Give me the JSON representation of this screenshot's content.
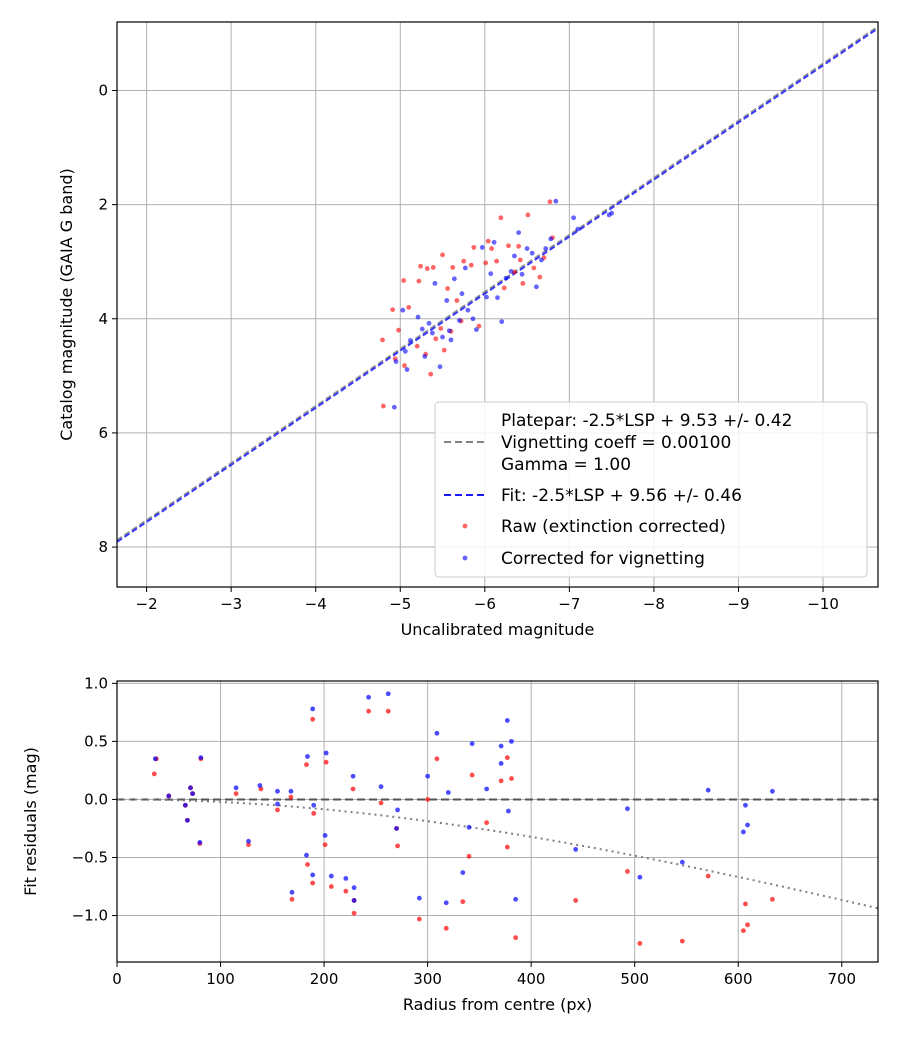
{
  "chart_data": [
    {
      "type": "scatter",
      "title": "",
      "xlabel": "Uncalibrated magnitude",
      "ylabel": "Catalog magnitude (GAIA G band)",
      "xlim": [
        -1.65,
        -10.65
      ],
      "ylim": [
        8.7,
        -1.2
      ],
      "x_inverted": true,
      "y_inverted": true,
      "xticks": [
        -2,
        -3,
        -4,
        -5,
        -6,
        -7,
        -8,
        -9,
        -10
      ],
      "xtick_labels": [
        "−2",
        "−3",
        "−4",
        "−5",
        "−6",
        "−7",
        "−8",
        "−9",
        "−10"
      ],
      "yticks": [
        0,
        2,
        4,
        6,
        8
      ],
      "ytick_labels": [
        "0",
        "2",
        "4",
        "6",
        "8"
      ],
      "grid": true,
      "legend_position": "lower-right",
      "legend": [
        {
          "label": "Platepar: -2.5*LSP + 9.53 +/- 0.42",
          "kind": "none",
          "color": ""
        },
        {
          "label": "Vignetting coeff = 0.00100",
          "kind": "line-dashed",
          "color": "#808080"
        },
        {
          "label": "Gamma = 1.00",
          "kind": "none",
          "color": ""
        },
        {
          "label": "Fit: -2.5*LSP + 9.56 +/- 0.46",
          "kind": "line-dashed",
          "color": "#1a1aff"
        },
        {
          "label": "Raw (extinction corrected)",
          "kind": "marker",
          "color": "#ff0000"
        },
        {
          "label": "Corrected for vignetting",
          "kind": "marker",
          "color": "#0000ff"
        }
      ],
      "lines": [
        {
          "name": "Platepar: -2.5*LSP + 9.53 +/- 0.42",
          "slope": 1.0,
          "intercept": 9.53,
          "color": "#808080",
          "dash": "6,3"
        },
        {
          "name": "Fit: -2.5*LSP + 9.56 +/- 0.46",
          "slope": 1.0,
          "intercept": 9.56,
          "color": "#1a1aff",
          "dash": "6,3"
        }
      ],
      "series": [
        {
          "name": "Raw (extinction corrected)",
          "color": "#ff0000",
          "points": [
            [
              -4.8,
              5.53
            ],
            [
              -4.79,
              4.37
            ],
            [
              -4.91,
              3.84
            ],
            [
              -4.94,
              4.7
            ],
            [
              -4.98,
              4.2
            ],
            [
              -5.04,
              3.33
            ],
            [
              -5.05,
              4.82
            ],
            [
              -5.1,
              3.8
            ],
            [
              -5.2,
              4.48
            ],
            [
              -5.22,
              3.34
            ],
            [
              -5.24,
              3.08
            ],
            [
              -5.3,
              4.62
            ],
            [
              -5.32,
              3.12
            ],
            [
              -5.36,
              4.97
            ],
            [
              -5.39,
              3.1
            ],
            [
              -5.42,
              4.35
            ],
            [
              -5.48,
              4.17
            ],
            [
              -5.5,
              2.88
            ],
            [
              -5.52,
              4.55
            ],
            [
              -5.56,
              3.47
            ],
            [
              -5.6,
              4.22
            ],
            [
              -5.62,
              3.1
            ],
            [
              -5.67,
              3.68
            ],
            [
              -5.72,
              4.04
            ],
            [
              -5.75,
              2.99
            ],
            [
              -5.84,
              3.06
            ],
            [
              -5.87,
              2.75
            ],
            [
              -5.93,
              4.13
            ],
            [
              -6.01,
              3.02
            ],
            [
              -6.04,
              2.64
            ],
            [
              -6.08,
              2.77
            ],
            [
              -6.14,
              2.99
            ],
            [
              -6.19,
              2.23
            ],
            [
              -6.23,
              3.46
            ],
            [
              -6.28,
              2.72
            ],
            [
              -6.35,
              3.18
            ],
            [
              -6.4,
              2.73
            ],
            [
              -6.42,
              2.97
            ],
            [
              -6.45,
              3.38
            ],
            [
              -6.51,
              2.18
            ],
            [
              -6.58,
              3.11
            ],
            [
              -6.65,
              3.27
            ],
            [
              -6.7,
              2.93
            ],
            [
              -6.77,
              1.95
            ],
            [
              -6.8,
              2.58
            ]
          ]
        },
        {
          "name": "Corrected for vignetting",
          "color": "#0000ff",
          "points": [
            [
              -4.93,
              5.55
            ],
            [
              -4.95,
              4.75
            ],
            [
              -5.03,
              3.85
            ],
            [
              -5.06,
              4.57
            ],
            [
              -5.08,
              4.89
            ],
            [
              -5.12,
              4.38
            ],
            [
              -5.21,
              3.97
            ],
            [
              -5.26,
              4.18
            ],
            [
              -5.29,
              4.66
            ],
            [
              -5.34,
              4.08
            ],
            [
              -5.38,
              4.25
            ],
            [
              -5.41,
              3.38
            ],
            [
              -5.47,
              4.84
            ],
            [
              -5.5,
              4.32
            ],
            [
              -5.55,
              3.68
            ],
            [
              -5.58,
              4.21
            ],
            [
              -5.6,
              4.37
            ],
            [
              -5.64,
              3.3
            ],
            [
              -5.7,
              4.03
            ],
            [
              -5.73,
              3.56
            ],
            [
              -5.77,
              3.11
            ],
            [
              -5.8,
              3.85
            ],
            [
              -5.86,
              4.0
            ],
            [
              -5.9,
              4.19
            ],
            [
              -5.97,
              2.75
            ],
            [
              -6.02,
              3.62
            ],
            [
              -6.07,
              3.21
            ],
            [
              -6.11,
              2.66
            ],
            [
              -6.15,
              3.63
            ],
            [
              -6.2,
              4.05
            ],
            [
              -6.25,
              3.29
            ],
            [
              -6.31,
              3.17
            ],
            [
              -6.35,
              2.9
            ],
            [
              -6.4,
              2.49
            ],
            [
              -6.44,
              3.22
            ],
            [
              -6.5,
              2.77
            ],
            [
              -6.56,
              2.85
            ],
            [
              -6.61,
              3.44
            ],
            [
              -6.67,
              2.97
            ],
            [
              -6.72,
              2.77
            ],
            [
              -6.78,
              2.6
            ],
            [
              -6.84,
              1.94
            ],
            [
              -7.05,
              2.23
            ],
            [
              -7.1,
              2.43
            ],
            [
              -7.47,
              2.18
            ],
            [
              -7.5,
              2.15
            ]
          ]
        }
      ]
    },
    {
      "type": "scatter",
      "title": "",
      "xlabel": "Radius from centre (px)",
      "ylabel": "Fit residuals (mag)",
      "xlim": [
        0,
        735
      ],
      "ylim": [
        -1.4,
        1.02
      ],
      "xticks": [
        0,
        100,
        200,
        300,
        400,
        500,
        600,
        700
      ],
      "xtick_labels": [
        "0",
        "100",
        "200",
        "300",
        "400",
        "500",
        "600",
        "700"
      ],
      "yticks": [
        1.0,
        0.5,
        0.0,
        -0.5,
        -1.0
      ],
      "ytick_labels": [
        "1.0",
        "0.5",
        "0.0",
        "−0.5",
        "−1.0"
      ],
      "grid": true,
      "hline": {
        "y": 0.0,
        "color": "#555555",
        "dash": "8,4"
      },
      "vignetting_curve": {
        "coeff": 0.001,
        "color": "#808080",
        "dash": "2,4"
      },
      "series": [
        {
          "name": "Raw (extinction corrected)",
          "color": "#ff0000",
          "points": [
            [
              36,
              0.22
            ],
            [
              38,
              0.35
            ],
            [
              50,
              0.03
            ],
            [
              66,
              -0.05
            ],
            [
              68,
              -0.18
            ],
            [
              71,
              0.1
            ],
            [
              73,
              0.05
            ],
            [
              80,
              -0.38
            ],
            [
              81,
              0.35
            ],
            [
              115,
              0.05
            ],
            [
              127,
              -0.39
            ],
            [
              139,
              0.09
            ],
            [
              155,
              -0.09
            ],
            [
              168,
              0.02
            ],
            [
              169,
              -0.86
            ],
            [
              183,
              0.3
            ],
            [
              184,
              -0.56
            ],
            [
              189,
              0.69
            ],
            [
              189,
              -0.72
            ],
            [
              190,
              -0.12
            ],
            [
              201,
              -0.39
            ],
            [
              202,
              0.32
            ],
            [
              207,
              -0.75
            ],
            [
              221,
              -0.79
            ],
            [
              228,
              0.09
            ],
            [
              229,
              -0.98
            ],
            [
              229,
              -0.87
            ],
            [
              243,
              0.76
            ],
            [
              255,
              -0.03
            ],
            [
              262,
              0.76
            ],
            [
              270,
              -0.25
            ],
            [
              271,
              -0.4
            ],
            [
              292,
              -1.03
            ],
            [
              300,
              0.0
            ],
            [
              309,
              0.35
            ],
            [
              318,
              -1.11
            ],
            [
              334,
              -0.88
            ],
            [
              340,
              -0.49
            ],
            [
              343,
              0.21
            ],
            [
              357,
              -0.2
            ],
            [
              371,
              0.16
            ],
            [
              377,
              0.36
            ],
            [
              377,
              -0.41
            ],
            [
              381,
              0.18
            ],
            [
              385,
              -1.19
            ],
            [
              443,
              -0.87
            ],
            [
              493,
              -0.62
            ],
            [
              505,
              -1.24
            ],
            [
              546,
              -1.22
            ],
            [
              571,
              -0.66
            ],
            [
              605,
              -1.13
            ],
            [
              607,
              -0.9
            ],
            [
              609,
              -1.08
            ],
            [
              633,
              -0.86
            ]
          ]
        },
        {
          "name": "Corrected for vignetting",
          "color": "#0000ff",
          "points": [
            [
              37,
              0.35
            ],
            [
              50,
              0.03
            ],
            [
              66,
              -0.05
            ],
            [
              68,
              -0.18
            ],
            [
              71,
              0.1
            ],
            [
              73,
              0.05
            ],
            [
              80,
              -0.37
            ],
            [
              81,
              0.36
            ],
            [
              115,
              0.1
            ],
            [
              127,
              -0.36
            ],
            [
              138,
              0.12
            ],
            [
              155,
              -0.04
            ],
            [
              155,
              0.07
            ],
            [
              168,
              0.07
            ],
            [
              169,
              -0.8
            ],
            [
              183,
              -0.48
            ],
            [
              184,
              0.37
            ],
            [
              189,
              0.78
            ],
            [
              189,
              -0.65
            ],
            [
              190,
              -0.05
            ],
            [
              201,
              -0.31
            ],
            [
              202,
              0.4
            ],
            [
              207,
              -0.66
            ],
            [
              221,
              -0.68
            ],
            [
              228,
              0.2
            ],
            [
              229,
              -0.76
            ],
            [
              229,
              -0.87
            ],
            [
              243,
              0.88
            ],
            [
              255,
              0.11
            ],
            [
              262,
              0.91
            ],
            [
              270,
              -0.25
            ],
            [
              271,
              -0.09
            ],
            [
              292,
              -0.85
            ],
            [
              300,
              0.2
            ],
            [
              309,
              0.57
            ],
            [
              318,
              -0.89
            ],
            [
              320,
              0.06
            ],
            [
              334,
              -0.63
            ],
            [
              340,
              -0.24
            ],
            [
              343,
              0.48
            ],
            [
              357,
              0.09
            ],
            [
              371,
              0.46
            ],
            [
              371,
              0.31
            ],
            [
              377,
              0.68
            ],
            [
              378,
              -0.1
            ],
            [
              381,
              0.5
            ],
            [
              385,
              -0.86
            ],
            [
              443,
              -0.43
            ],
            [
              493,
              -0.08
            ],
            [
              505,
              -0.67
            ],
            [
              546,
              -0.54
            ],
            [
              571,
              0.08
            ],
            [
              605,
              -0.28
            ],
            [
              607,
              -0.05
            ],
            [
              609,
              -0.22
            ],
            [
              633,
              0.07
            ]
          ]
        }
      ]
    }
  ]
}
